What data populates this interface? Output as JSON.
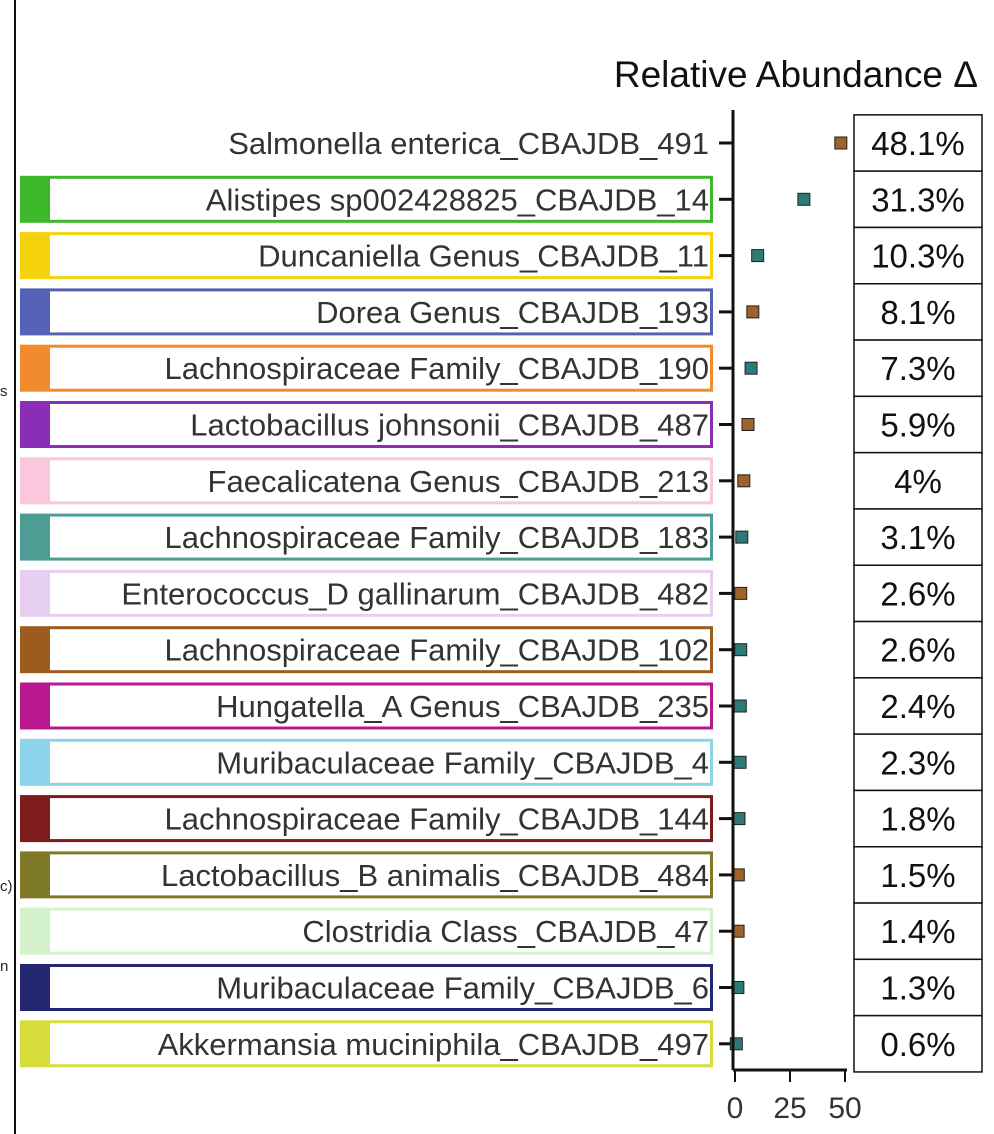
{
  "chart_data": {
    "type": "scatter",
    "title": "Relative Abundance Δ",
    "xlabel": "",
    "ylabel": "",
    "xlim": [
      0,
      50
    ],
    "xticks": [
      0,
      25,
      50
    ],
    "point_colors": {
      "brown": "#a0612a",
      "teal": "#2e7a78"
    },
    "categories": [
      {
        "label": "Salmonella enterica_CBAJDB_491",
        "value": 48.1,
        "display": "48.1%",
        "box_color": null,
        "point": "brown"
      },
      {
        "label": "Alistipes sp002428825_CBAJDB_14",
        "value": 31.3,
        "display": "31.3%",
        "box_color": "#3cb82a",
        "point": "teal"
      },
      {
        "label": "Duncaniella Genus_CBAJDB_11",
        "value": 10.3,
        "display": "10.3%",
        "box_color": "#f5d20e",
        "point": "teal"
      },
      {
        "label": "Dorea Genus_CBAJDB_193",
        "value": 8.1,
        "display": "8.1%",
        "box_color": "#5561b5",
        "point": "brown"
      },
      {
        "label": "Lachnospiraceae Family_CBAJDB_190",
        "value": 7.3,
        "display": "7.3%",
        "box_color": "#f28a2e",
        "point": "teal"
      },
      {
        "label": "Lactobacillus johnsonii_CBAJDB_487",
        "value": 5.9,
        "display": "5.9%",
        "box_color": "#8a2eb8",
        "point": "brown"
      },
      {
        "label": "Faecalicatena Genus_CBAJDB_213",
        "value": 4,
        "display": "4%",
        "box_color": "#f9c8dc",
        "point": "brown"
      },
      {
        "label": "Lachnospiraceae Family_CBAJDB_183",
        "value": 3.1,
        "display": "3.1%",
        "box_color": "#4c9e95",
        "point": "teal"
      },
      {
        "label": "Enterococcus_D gallinarum_CBAJDB_482",
        "value": 2.6,
        "display": "2.6%",
        "box_color": "#e6cff0",
        "point": "brown"
      },
      {
        "label": "Lachnospiraceae Family_CBAJDB_102",
        "value": 2.6,
        "display": "2.6%",
        "box_color": "#9c5c1f",
        "point": "teal"
      },
      {
        "label": "Hungatella_A Genus_CBAJDB_235",
        "value": 2.4,
        "display": "2.4%",
        "box_color": "#b8198f",
        "point": "teal"
      },
      {
        "label": "Muribaculaceae Family_CBAJDB_4",
        "value": 2.3,
        "display": "2.3%",
        "box_color": "#8dd3ea",
        "point": "teal"
      },
      {
        "label": "Lachnospiraceae Family_CBAJDB_144",
        "value": 1.8,
        "display": "1.8%",
        "box_color": "#7e1c1c",
        "point": "teal"
      },
      {
        "label": "Lactobacillus_B animalis_CBAJDB_484",
        "value": 1.5,
        "display": "1.5%",
        "box_color": "#7e7a2a",
        "point": "brown"
      },
      {
        "label": "Clostridia Class_CBAJDB_47",
        "value": 1.4,
        "display": "1.4%",
        "box_color": "#d4f2cc",
        "point": "brown"
      },
      {
        "label": "Muribaculaceae Family_CBAJDB_6",
        "value": 1.3,
        "display": "1.3%",
        "box_color": "#232670",
        "point": "teal"
      },
      {
        "label": "Akkermansia muciniphila_CBAJDB_497",
        "value": 0.6,
        "display": "0.6%",
        "box_color": "#d6dc3a",
        "point": "teal"
      }
    ]
  },
  "edge_fragments": {
    "frag_1": "s",
    "frag_2": "c)",
    "frag_3": "n"
  }
}
